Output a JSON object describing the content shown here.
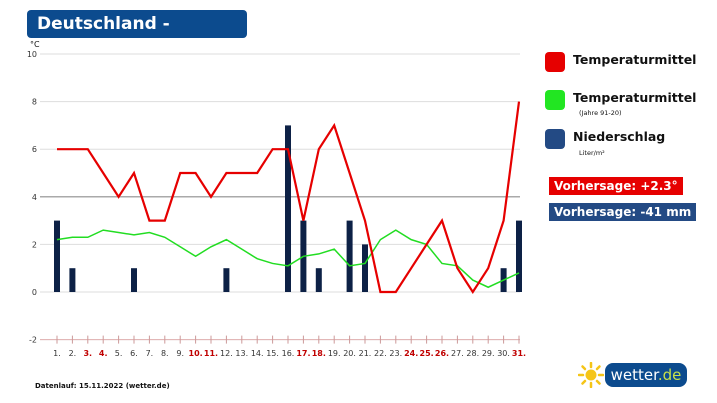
{
  "title": "Deutschland - Dezember",
  "footer": "Datenlauf: 15.11.2022 (wetter.de)",
  "logo": {
    "main": "wetter",
    "suffix": ".de"
  },
  "legend": [
    {
      "label": "Temperaturmittel",
      "sub": "",
      "color": "#e60000"
    },
    {
      "label": "Temperaturmittel",
      "sub": "(Jahre 91-20)",
      "color": "#22e622"
    },
    {
      "label": "Niederschlag",
      "sub": "Liter/m²",
      "color": "#234a84"
    }
  ],
  "forecast": {
    "temp": "Vorhersage: +2.3°",
    "temp_color": "#e60000",
    "precip": "Vorhersage: -41 mm",
    "precip_color": "#234a84"
  },
  "chart_data": {
    "type": "line",
    "ylabel": "°C",
    "ylim": [
      -2,
      10
    ],
    "yticks": [
      -2,
      0,
      2,
      4,
      6,
      8,
      10
    ],
    "grid": true,
    "legend_placement": "right",
    "categories": [
      "1.",
      "2.",
      "3.",
      "4.",
      "5.",
      "6.",
      "7.",
      "8.",
      "9.",
      "10.",
      "11.",
      "12.",
      "13.",
      "14.",
      "15.",
      "16.",
      "17.",
      "18.",
      "19.",
      "20.",
      "21.",
      "22.",
      "23.",
      "24.",
      "25.",
      "26.",
      "27.",
      "28.",
      "29.",
      "30.",
      "31."
    ],
    "highlighted_days": [
      "3.",
      "4.",
      "10.",
      "11.",
      "17.",
      "18.",
      "24.",
      "25.",
      "26.",
      "31."
    ],
    "series": [
      {
        "name": "Temperaturmittel",
        "type": "line",
        "color": "#e60000",
        "values": [
          6,
          6,
          6,
          5,
          4,
          5,
          3,
          3,
          5,
          5,
          4,
          5,
          5,
          5,
          6,
          6,
          3,
          6,
          7,
          5,
          3,
          0,
          0,
          1,
          2,
          3,
          1,
          0,
          1,
          3,
          8
        ]
      },
      {
        "name": "Temperaturmittel (Jahre 91-20)",
        "type": "line",
        "color": "#22dd22",
        "values": [
          2.2,
          2.3,
          2.3,
          2.6,
          2.5,
          2.4,
          2.5,
          2.3,
          1.9,
          1.5,
          1.9,
          2.2,
          1.8,
          1.4,
          1.2,
          1.1,
          1.5,
          1.6,
          1.8,
          1.1,
          1.2,
          2.2,
          2.6,
          2.2,
          2.0,
          1.2,
          1.1,
          0.5,
          0.2,
          0.5,
          0.8
        ]
      },
      {
        "name": "Niederschlag",
        "type": "bar",
        "color": "#0d2146",
        "values": [
          3,
          1,
          0,
          0,
          0,
          1,
          0,
          0,
          0,
          0,
          0,
          1,
          0,
          0,
          0,
          7,
          3,
          1,
          0,
          3,
          2,
          0,
          0,
          0,
          0,
          0,
          0,
          0,
          0,
          1,
          3
        ]
      }
    ]
  }
}
